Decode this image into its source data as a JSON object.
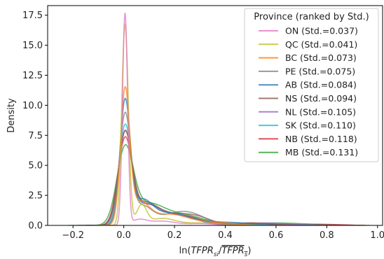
{
  "chart_data": {
    "type": "line",
    "title": "",
    "xlabel_prefix": "ln(",
    "xlabel_num": "TFPR",
    "xlabel_num_sub": "si",
    "xlabel_sep": "/",
    "xlabel_den": "TFPR",
    "xlabel_den_sub": "s",
    "xlabel_suffix": ")",
    "ylabel": "Density",
    "xlim": [
      -0.3,
      1.02
    ],
    "ylim": [
      0,
      18.3
    ],
    "xticks": [
      -0.2,
      0.0,
      0.2,
      0.4,
      0.6,
      0.8,
      1.0
    ],
    "xtick_labels": [
      "−0.2",
      "0.0",
      "0.2",
      "0.4",
      "0.6",
      "0.8",
      "1.0"
    ],
    "yticks": [
      0.0,
      2.5,
      5.0,
      7.5,
      10.0,
      12.5,
      15.0,
      17.5
    ],
    "ytick_labels": [
      "0.0",
      "2.5",
      "5.0",
      "7.5",
      "10.0",
      "12.5",
      "15.0",
      "17.5"
    ],
    "grid": false,
    "legend": {
      "title": "Province (ranked by Std.)",
      "placement": "top-right"
    },
    "series": [
      {
        "name": "ON (Std.=0.037)",
        "color": "#e377c2",
        "peak": 17.6,
        "width": 0.01,
        "min": -0.08,
        "max": 0.6,
        "bumps": [
          [
            0.06,
            0.45,
            0.03
          ],
          [
            0.15,
            0.35,
            0.05
          ],
          [
            0.3,
            0.15,
            0.06
          ]
        ]
      },
      {
        "name": "QC (Std.=0.041)",
        "color": "#bcbd22",
        "peak": 16.7,
        "width": 0.013,
        "min": -0.1,
        "max": 0.65,
        "bumps": [
          [
            0.07,
            1.6,
            0.02
          ],
          [
            0.15,
            0.55,
            0.05
          ],
          [
            0.3,
            0.2,
            0.08
          ]
        ]
      },
      {
        "name": "BC (Std.=0.073)",
        "color": "#ff7f0e",
        "peak": 10.8,
        "width": 0.018,
        "min": -0.12,
        "max": 0.75,
        "bumps": [
          [
            0.06,
            1.8,
            0.04
          ],
          [
            0.18,
            0.9,
            0.07
          ],
          [
            0.35,
            0.25,
            0.08
          ]
        ]
      },
      {
        "name": "PE (Std.=0.075)",
        "color": "#7f7f7f",
        "peak": 9.0,
        "width": 0.022,
        "min": -0.12,
        "max": 0.8,
        "bumps": [
          [
            0.07,
            1.5,
            0.04
          ],
          [
            0.2,
            0.85,
            0.07
          ],
          [
            0.28,
            0.55,
            0.06
          ]
        ]
      },
      {
        "name": "AB (Std.=0.084)",
        "color": "#1f77b4",
        "peak": 10.0,
        "width": 0.02,
        "min": -0.15,
        "max": 0.85,
        "bumps": [
          [
            0.07,
            1.8,
            0.04
          ],
          [
            0.18,
            1.0,
            0.08
          ],
          [
            0.4,
            0.25,
            0.1
          ]
        ]
      },
      {
        "name": "NS (Std.=0.094)",
        "color": "#8c564b",
        "peak": 7.3,
        "width": 0.026,
        "min": -0.15,
        "max": 0.88,
        "bumps": [
          [
            0.08,
            1.6,
            0.05
          ],
          [
            0.2,
            0.9,
            0.08
          ],
          [
            0.3,
            0.35,
            0.05
          ],
          [
            0.5,
            0.2,
            0.08
          ]
        ]
      },
      {
        "name": "NL (Std.=0.105)",
        "color": "#9467bd",
        "peak": 7.4,
        "width": 0.026,
        "min": -0.15,
        "max": 0.9,
        "bumps": [
          [
            0.08,
            1.5,
            0.05
          ],
          [
            0.2,
            0.85,
            0.08
          ],
          [
            0.55,
            0.2,
            0.1
          ]
        ]
      },
      {
        "name": "SK (Std.=0.110)",
        "color": "#17becf",
        "peak": 7.9,
        "width": 0.024,
        "min": -0.18,
        "max": 0.92,
        "bumps": [
          [
            0.08,
            1.5,
            0.05
          ],
          [
            0.2,
            0.9,
            0.08
          ],
          [
            0.6,
            0.15,
            0.1
          ]
        ]
      },
      {
        "name": "NB (Std.=0.118)",
        "color": "#d62728",
        "peak": 7.0,
        "width": 0.028,
        "min": -0.18,
        "max": 0.95,
        "bumps": [
          [
            0.09,
            1.5,
            0.05
          ],
          [
            0.22,
            0.85,
            0.08
          ],
          [
            0.5,
            0.2,
            0.06
          ],
          [
            0.75,
            0.1,
            0.1
          ]
        ]
      },
      {
        "name": "MB (Std.=0.131)",
        "color": "#2ca02c",
        "peak": 6.1,
        "width": 0.032,
        "min": -0.22,
        "max": 0.97,
        "bumps": [
          [
            0.09,
            1.5,
            0.06
          ],
          [
            0.22,
            0.9,
            0.09
          ],
          [
            0.6,
            0.2,
            0.12
          ]
        ]
      }
    ]
  }
}
